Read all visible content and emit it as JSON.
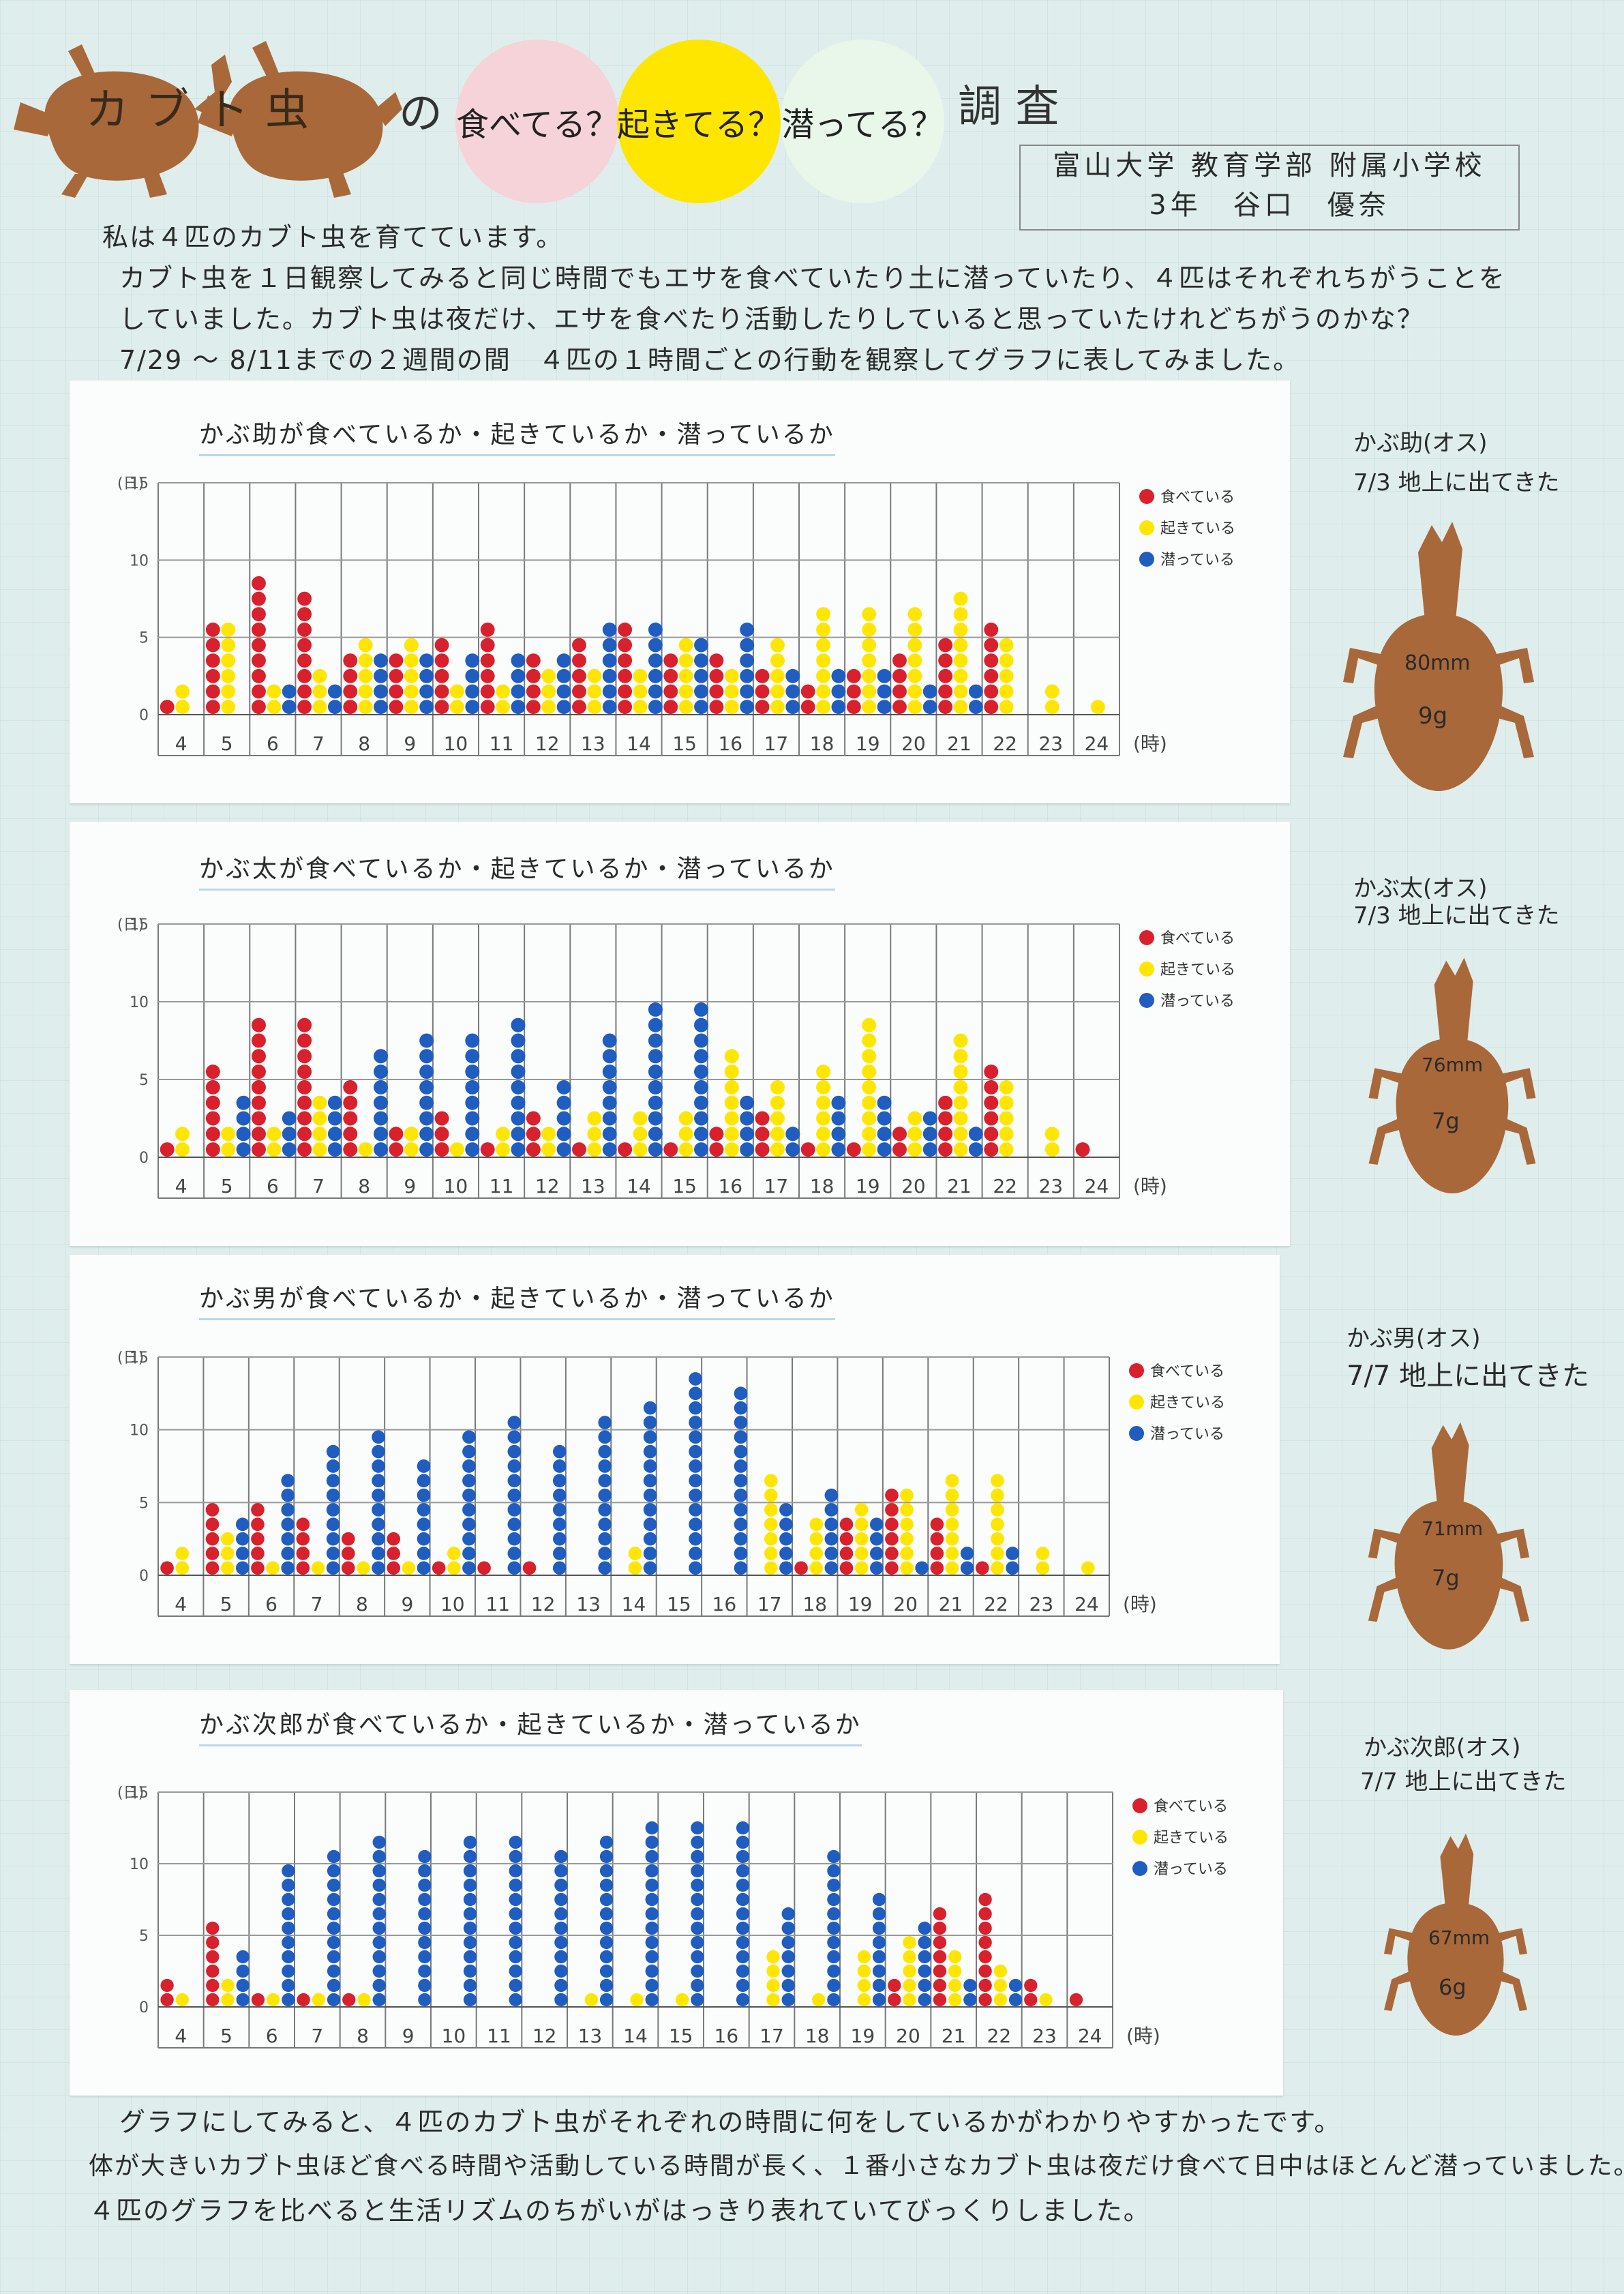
{
  "header": {
    "title_left": "カブト虫",
    "title_no": "の",
    "bubble_eat": "食べてる？",
    "bubble_awake": "起きてる？",
    "bubble_dive": "潜ってる？",
    "title_right": "調 査",
    "school_line1": "富山大学 教育学部 附属小学校",
    "school_line2": "3年　谷口　優奈",
    "colors": {
      "eat": "#d8212d",
      "awake": "#ffe600",
      "dive": "#1f5dc0",
      "beetle": "#a8683a",
      "bubble_pink": "#f5d3d8",
      "bubble_yellow": "#ffe600",
      "bubble_mint": "#e8f7ea"
    }
  },
  "intro": [
    "私は４匹のカブト虫を育てています。",
    "カブト虫を１日観察してみると同じ時間でもエサを食べていたり土に潜っていたり、４匹はそれぞれちがうことを",
    "していました。カブト虫は夜だけ、エサを食べたり活動したりしていると思っていたけれどちがうのかな？",
    "7/29 〜 8/11までの２週間の間　４匹の１時間ごとの行動を観察してグラフに表してみました。"
  ],
  "outro": [
    "グラフにしてみると、４匹のカブト虫がそれぞれの時間に何をしているかがわかりやすかったです。",
    "体が大きいカブト虫ほど食べる時間や活動している時間が長く、１番小さなカブト虫は夜だけ食べて日中はほとんど潜っていました。",
    "４匹のグラフを比べると生活リズムのちがいがはっきり表れていてびっくりしました。"
  ],
  "legend": {
    "eat": "食べている",
    "awake": "起きている",
    "dive": "潜っている"
  },
  "axis": {
    "ylabel": "(日)",
    "xlabel": "(時)"
  },
  "beetles": [
    {
      "name": "かぶ助(オス)",
      "date": "7/3 地上に出てきた",
      "size": "80mm",
      "weight": "9g"
    },
    {
      "name": "かぶ太(オス)",
      "date": "7/3 地上に出てきた",
      "size": "76mm",
      "weight": "7g"
    },
    {
      "name": "かぶ男(オス)",
      "date": "7/7 地上に出てきた",
      "size": "71mm",
      "weight": "7g"
    },
    {
      "name": "かぶ次郎(オス)",
      "date": "7/7 地上に出てきた",
      "size": "67mm",
      "weight": "6g"
    }
  ],
  "chart_data": [
    {
      "type": "bar",
      "title": "かぶ助が食べているか・起きているか・潜っているか",
      "categories": [
        "4",
        "5",
        "6",
        "7",
        "8",
        "9",
        "10",
        "11",
        "12",
        "13",
        "14",
        "15",
        "16",
        "17",
        "18",
        "19",
        "20",
        "21",
        "22",
        "23",
        "24"
      ],
      "ylim": [
        0,
        15
      ],
      "yticks": [
        0,
        5,
        10,
        15
      ],
      "series": [
        {
          "name": "食べている",
          "values": [
            1,
            6,
            9,
            8,
            4,
            4,
            5,
            6,
            4,
            5,
            6,
            4,
            4,
            3,
            2,
            3,
            4,
            5,
            6,
            0,
            0
          ]
        },
        {
          "name": "起きている",
          "values": [
            2,
            6,
            2,
            3,
            5,
            5,
            2,
            2,
            3,
            3,
            3,
            5,
            3,
            5,
            7,
            7,
            7,
            8,
            5,
            2,
            1
          ]
        },
        {
          "name": "潜っている",
          "values": [
            0,
            0,
            2,
            2,
            4,
            4,
            4,
            4,
            4,
            6,
            6,
            5,
            6,
            3,
            3,
            3,
            2,
            2,
            0,
            0,
            0
          ]
        }
      ]
    },
    {
      "type": "bar",
      "title": "かぶ太が食べているか・起きているか・潜っているか",
      "categories": [
        "4",
        "5",
        "6",
        "7",
        "8",
        "9",
        "10",
        "11",
        "12",
        "13",
        "14",
        "15",
        "16",
        "17",
        "18",
        "19",
        "20",
        "21",
        "22",
        "23",
        "24"
      ],
      "ylim": [
        0,
        15
      ],
      "yticks": [
        0,
        5,
        10,
        15
      ],
      "series": [
        {
          "name": "食べている",
          "values": [
            1,
            6,
            9,
            9,
            5,
            2,
            3,
            1,
            3,
            1,
            1,
            1,
            2,
            3,
            1,
            1,
            2,
            4,
            6,
            0,
            1
          ]
        },
        {
          "name": "起きている",
          "values": [
            2,
            2,
            2,
            4,
            1,
            2,
            1,
            2,
            2,
            3,
            3,
            3,
            7,
            5,
            6,
            9,
            3,
            8,
            5,
            2,
            0
          ]
        },
        {
          "name": "潜っている",
          "values": [
            0,
            4,
            3,
            4,
            7,
            8,
            8,
            9,
            5,
            8,
            10,
            10,
            4,
            2,
            4,
            4,
            3,
            2,
            0,
            0,
            0
          ]
        }
      ]
    },
    {
      "type": "bar",
      "title": "かぶ男が食べているか・起きているか・潜っているか",
      "categories": [
        "4",
        "5",
        "6",
        "7",
        "8",
        "9",
        "10",
        "11",
        "12",
        "13",
        "14",
        "15",
        "16",
        "17",
        "18",
        "19",
        "20",
        "21",
        "22",
        "23",
        "24"
      ],
      "ylim": [
        0,
        15
      ],
      "yticks": [
        0,
        5,
        10,
        15
      ],
      "series": [
        {
          "name": "食べている",
          "values": [
            1,
            5,
            5,
            4,
            3,
            3,
            1,
            1,
            1,
            0,
            0,
            0,
            0,
            0,
            1,
            4,
            6,
            4,
            1,
            0,
            0
          ]
        },
        {
          "name": "起きている",
          "values": [
            2,
            3,
            1,
            1,
            1,
            1,
            2,
            0,
            0,
            0,
            2,
            0,
            0,
            7,
            4,
            5,
            6,
            7,
            7,
            2,
            1
          ]
        },
        {
          "name": "潜っている",
          "values": [
            0,
            4,
            7,
            9,
            10,
            8,
            10,
            11,
            9,
            11,
            12,
            14,
            13,
            5,
            6,
            4,
            1,
            2,
            2,
            0,
            0
          ]
        }
      ]
    },
    {
      "type": "bar",
      "title": "かぶ次郎が食べているか・起きているか・潜っているか",
      "categories": [
        "4",
        "5",
        "6",
        "7",
        "8",
        "9",
        "10",
        "11",
        "12",
        "13",
        "14",
        "15",
        "16",
        "17",
        "18",
        "19",
        "20",
        "21",
        "22",
        "23",
        "24"
      ],
      "ylim": [
        0,
        15
      ],
      "yticks": [
        0,
        5,
        10,
        15
      ],
      "series": [
        {
          "name": "食べている",
          "values": [
            2,
            6,
            1,
            1,
            1,
            0,
            0,
            0,
            0,
            0,
            0,
            0,
            0,
            0,
            0,
            0,
            2,
            7,
            8,
            2,
            1
          ]
        },
        {
          "name": "起きている",
          "values": [
            1,
            2,
            1,
            1,
            1,
            0,
            0,
            0,
            0,
            1,
            1,
            1,
            0,
            4,
            1,
            4,
            5,
            4,
            3,
            1,
            0
          ]
        },
        {
          "name": "潜っている",
          "values": [
            0,
            4,
            10,
            11,
            12,
            11,
            12,
            12,
            11,
            12,
            13,
            13,
            13,
            7,
            11,
            8,
            6,
            2,
            2,
            0,
            0
          ]
        }
      ]
    }
  ]
}
